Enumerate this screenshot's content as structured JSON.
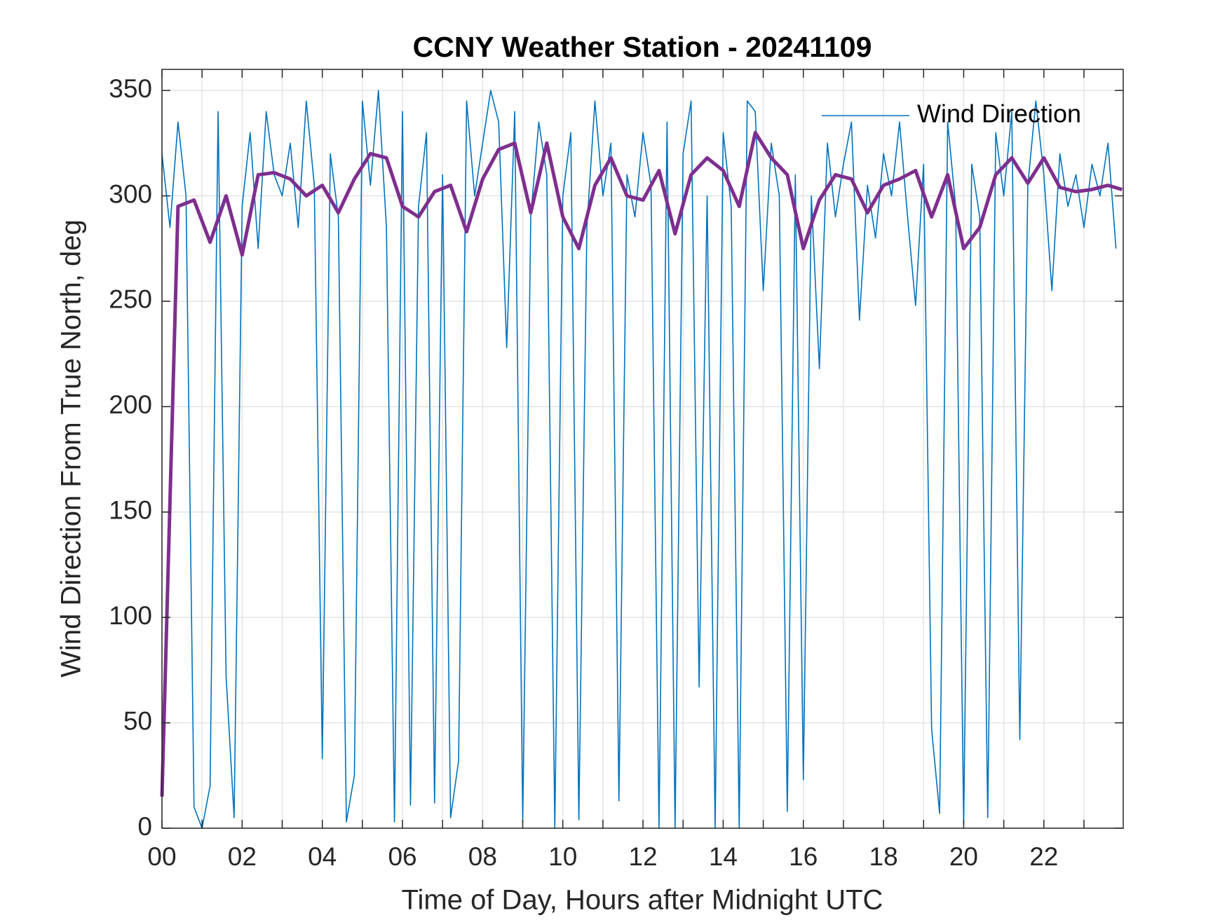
{
  "chart_data": {
    "type": "line",
    "title": "CCNY Weather Station - 20241109",
    "x_label": "Time of Day, Hours after Midnight UTC",
    "y_label": "Wind Direction From True North, deg",
    "xlim": [
      0,
      23.98
    ],
    "ylim": [
      0,
      360
    ],
    "xticks": [
      {
        "value": 0,
        "label": "00"
      },
      {
        "value": 2,
        "label": "02"
      },
      {
        "value": 4,
        "label": "04"
      },
      {
        "value": 6,
        "label": "06"
      },
      {
        "value": 8,
        "label": "08"
      },
      {
        "value": 10,
        "label": "10"
      },
      {
        "value": 12,
        "label": "12"
      },
      {
        "value": 14,
        "label": "14"
      },
      {
        "value": 16,
        "label": "16"
      },
      {
        "value": 18,
        "label": "18"
      },
      {
        "value": 20,
        "label": "20"
      },
      {
        "value": 22,
        "label": "22"
      }
    ],
    "minor_xticks": [
      1,
      3,
      5,
      7,
      9,
      11,
      13,
      15,
      17,
      19,
      21,
      23
    ],
    "yticks": [
      0,
      50,
      100,
      150,
      200,
      250,
      300,
      350
    ],
    "grid": true,
    "legend": "upper right",
    "series": [
      {
        "name": "Wind Direction",
        "color": "#0072bd",
        "x": [
          0,
          0.2,
          0.4,
          0.6,
          0.8,
          1,
          1.2,
          1.4,
          1.6,
          1.8,
          2,
          2.2,
          2.4,
          2.6,
          2.8,
          3,
          3.2,
          3.4,
          3.6,
          3.8,
          4,
          4.2,
          4.4,
          4.6,
          4.8,
          5,
          5.2,
          5.4,
          5.6,
          5.8,
          6,
          6.2,
          6.4,
          6.6,
          6.8,
          7,
          7.2,
          7.4,
          7.6,
          7.8,
          8,
          8.2,
          8.4,
          8.6,
          8.8,
          9,
          9.2,
          9.4,
          9.6,
          9.8,
          10,
          10.2,
          10.4,
          10.6,
          10.8,
          11,
          11.2,
          11.4,
          11.6,
          11.8,
          12,
          12.2,
          12.4,
          12.6,
          12.8,
          13,
          13.2,
          13.4,
          13.6,
          13.8,
          14,
          14.2,
          14.4,
          14.6,
          14.8,
          15,
          15.2,
          15.4,
          15.6,
          15.8,
          16,
          16.2,
          16.4,
          16.6,
          16.8,
          17,
          17.2,
          17.4,
          17.6,
          17.8,
          18,
          18.2,
          18.4,
          18.6,
          18.8,
          19,
          19.2,
          19.4,
          19.6,
          19.8,
          20,
          20.2,
          20.4,
          20.6,
          20.8,
          21,
          21.2,
          21.4,
          21.6,
          21.8,
          22,
          22.2,
          22.4,
          22.6,
          22.8,
          23,
          23.2,
          23.4,
          23.6,
          23.8
        ],
        "values": [
          320,
          285,
          335,
          300,
          10,
          0,
          20,
          340,
          72,
          5,
          295,
          330,
          275,
          340,
          310,
          300,
          325,
          285,
          345,
          305,
          33,
          320,
          290,
          3,
          25,
          345,
          305,
          350,
          285,
          3,
          340,
          11,
          295,
          330,
          12,
          310,
          5,
          32,
          345,
          300,
          325,
          350,
          335,
          228,
          340,
          3,
          290,
          335,
          310,
          0,
          300,
          330,
          4,
          285,
          345,
          300,
          325,
          13,
          310,
          290,
          330,
          305,
          0,
          335,
          0,
          320,
          345,
          67,
          300,
          0,
          330,
          295,
          0,
          345,
          340,
          255,
          325,
          300,
          8,
          310,
          23,
          300,
          218,
          325,
          290,
          315,
          335,
          241,
          305,
          280,
          320,
          300,
          335,
          290,
          248,
          315,
          47,
          7,
          335,
          295,
          2,
          315,
          290,
          5,
          330,
          300,
          340,
          42,
          305,
          345,
          310,
          255,
          320,
          295,
          310,
          285,
          315,
          300,
          325,
          275
        ]
      },
      {
        "color": "#7e2f8e",
        "x": [
          0,
          0.4,
          0.8,
          1.2,
          1.6,
          2,
          2.4,
          2.8,
          3.2,
          3.6,
          4,
          4.4,
          4.8,
          5.2,
          5.6,
          6,
          6.4,
          6.8,
          7.2,
          7.6,
          8,
          8.4,
          8.8,
          9.2,
          9.6,
          10,
          10.4,
          10.8,
          11.2,
          11.6,
          12,
          12.4,
          12.8,
          13.2,
          13.6,
          14,
          14.4,
          14.8,
          15.2,
          15.6,
          16,
          16.4,
          16.8,
          17.2,
          17.6,
          18,
          18.4,
          18.8,
          19.2,
          19.6,
          20,
          20.4,
          20.8,
          21.2,
          21.6,
          22,
          22.4,
          22.8,
          23.2,
          23.6,
          23.95
        ],
        "values": [
          15,
          295,
          298,
          278,
          300,
          272,
          310,
          311,
          308,
          300,
          305,
          292,
          308,
          320,
          318,
          295,
          290,
          302,
          305,
          283,
          308,
          322,
          325,
          292,
          325,
          290,
          275,
          305,
          318,
          300,
          298,
          312,
          282,
          310,
          318,
          312,
          295,
          330,
          318,
          310,
          275,
          298,
          310,
          308,
          292,
          305,
          308,
          312,
          290,
          310,
          275,
          285,
          310,
          318,
          306,
          318,
          304,
          302,
          303,
          305,
          303
        ]
      }
    ]
  }
}
